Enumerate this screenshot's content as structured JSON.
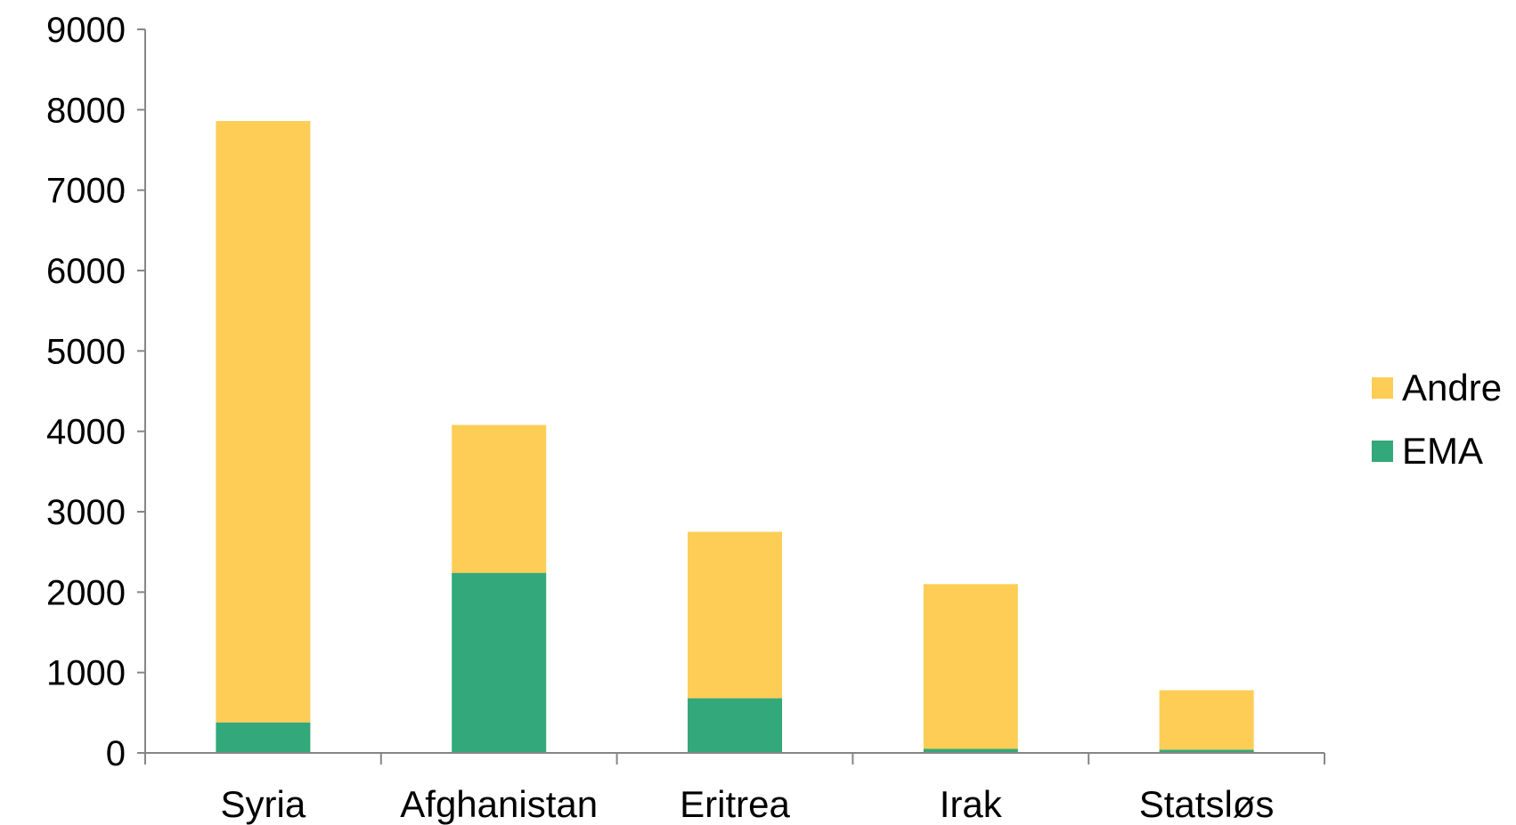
{
  "chart_data": {
    "type": "bar",
    "stacked": true,
    "categories": [
      "Syria",
      "Afghanistan",
      "Eritrea",
      "Irak",
      "Statsløs"
    ],
    "series": [
      {
        "name": "EMA",
        "values": [
          380,
          2240,
          680,
          50,
          40
        ],
        "color": "#33a87a"
      },
      {
        "name": "Andre",
        "values": [
          7480,
          1840,
          2070,
          2050,
          740
        ],
        "color": "#fdcd56"
      }
    ],
    "ylim": [
      0,
      9000
    ],
    "yticks": [
      0,
      1000,
      2000,
      3000,
      4000,
      5000,
      6000,
      7000,
      8000,
      9000
    ],
    "title": "",
    "xlabel": "",
    "ylabel": "",
    "grid": false,
    "legend_placement": "right",
    "legend_order": [
      "Andre",
      "EMA"
    ]
  }
}
